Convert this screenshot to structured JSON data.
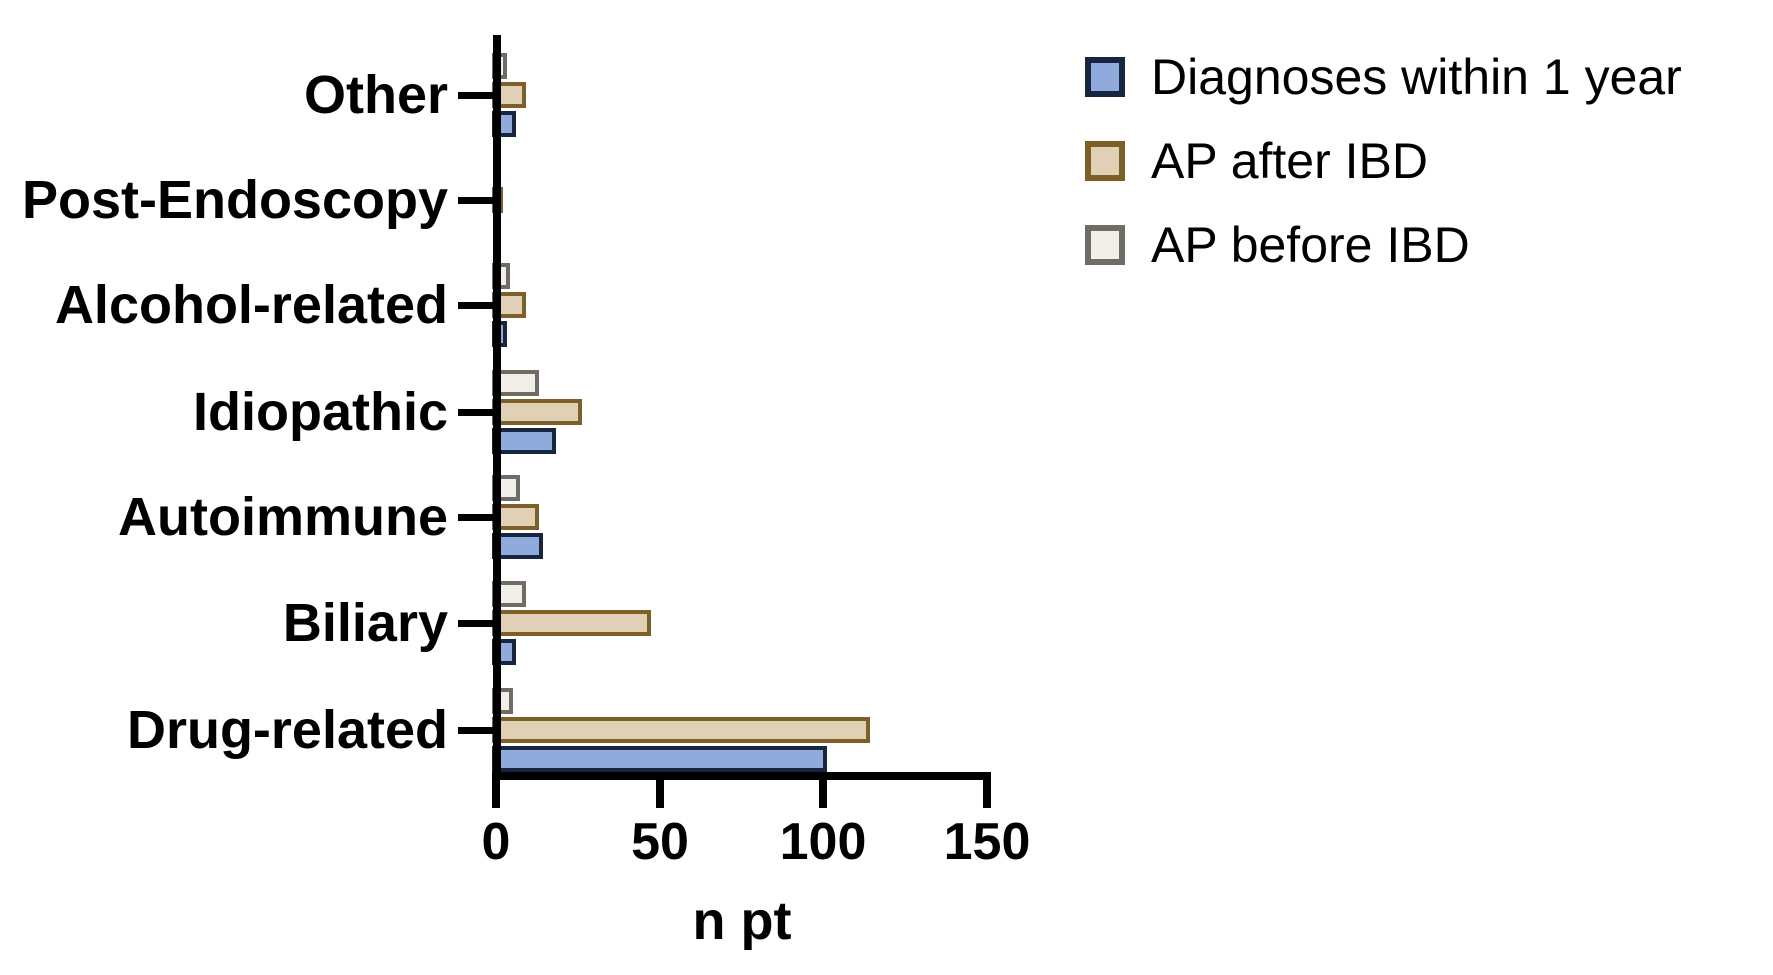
{
  "chart_data": {
    "type": "bar",
    "orientation": "horizontal",
    "xlabel": "n pt",
    "xlim": [
      0,
      150
    ],
    "x_ticks": [
      "0",
      "50",
      "100",
      "150"
    ],
    "x_tick_values": [
      0,
      50,
      100,
      150
    ],
    "grid": false,
    "axis_color": "#000000",
    "background_color": "#ffffff",
    "categories_top_to_bottom": [
      "Other",
      "Post-Endoscopy",
      "Alcohol-related",
      "Idiopathic",
      "Autoimmune",
      "Biliary",
      "Drug-related"
    ],
    "series": [
      {
        "name": "Diagnoses within 1 year",
        "fill": "#8FAADC",
        "border": "#17253F",
        "values": [
          5,
          0,
          2,
          17,
          13,
          5,
          100
        ]
      },
      {
        "name": "AP after IBD",
        "fill": "#DFD0B6",
        "border": "#7F5F28",
        "values": [
          8,
          1,
          8,
          25,
          12,
          46,
          113
        ]
      },
      {
        "name": "AP before IBD",
        "fill": "#F2EFE8",
        "border": "#6F6B65",
        "values": [
          2,
          0,
          3,
          12,
          6,
          8,
          4
        ]
      }
    ],
    "bar_order_within_group_top_to_bottom": [
      "AP before IBD",
      "AP after IBD",
      "Diagnoses within 1 year"
    ],
    "legend": {
      "position": "top-right",
      "items": [
        "Diagnoses within 1 year",
        "AP after IBD",
        "AP before IBD"
      ]
    }
  }
}
